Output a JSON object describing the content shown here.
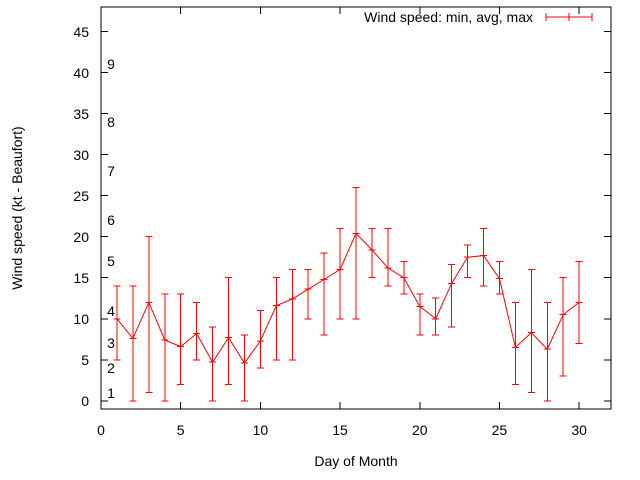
{
  "chart_data": {
    "type": "line",
    "subtype": "yerrorlines",
    "title": "",
    "xlabel": "Day of Month",
    "ylabel": "Wind speed (kt - Beaufort)",
    "legend_label": "Wind speed: min, avg, max",
    "legend_position": "top-right-inside",
    "grid": false,
    "series_color": "#ff0000",
    "axis_color": "#000000",
    "background_color": "#ffffff",
    "xlim": [
      0,
      32
    ],
    "ylim": [
      -1,
      48
    ],
    "x_ticks": [
      0,
      5,
      10,
      15,
      20,
      25,
      30
    ],
    "y_ticks": [
      0,
      5,
      10,
      15,
      20,
      25,
      30,
      35,
      40,
      45
    ],
    "beaufort_scale_labels": [
      {
        "label": "1",
        "kt": 1
      },
      {
        "label": "2",
        "kt": 4
      },
      {
        "label": "3",
        "kt": 7
      },
      {
        "label": "4",
        "kt": 11
      },
      {
        "label": "5",
        "kt": 17
      },
      {
        "label": "6",
        "kt": 22
      },
      {
        "label": "7",
        "kt": 28
      },
      {
        "label": "8",
        "kt": 34
      },
      {
        "label": "9",
        "kt": 41
      }
    ],
    "points": [
      {
        "day": 1,
        "min": 5,
        "avg": 10.0,
        "max": 14
      },
      {
        "day": 2,
        "min": 0,
        "avg": 7.6,
        "max": 14
      },
      {
        "day": 3,
        "min": 1,
        "avg": 12.0,
        "max": 20
      },
      {
        "day": 4,
        "min": 0,
        "avg": 7.4,
        "max": 13
      },
      {
        "day": 5,
        "min": 2,
        "avg": 6.6,
        "max": 13
      },
      {
        "day": 6,
        "min": 5,
        "avg": 8.2,
        "max": 12
      },
      {
        "day": 7,
        "min": 0,
        "avg": 4.7,
        "max": 9
      },
      {
        "day": 8,
        "min": 2,
        "avg": 7.7,
        "max": 15
      },
      {
        "day": 9,
        "min": 0,
        "avg": 4.6,
        "max": 8
      },
      {
        "day": 10,
        "min": 4,
        "avg": 7.3,
        "max": 11
      },
      {
        "day": 11,
        "min": 5,
        "avg": 11.6,
        "max": 15
      },
      {
        "day": 12,
        "min": 5,
        "avg": 12.4,
        "max": 16
      },
      {
        "day": 13,
        "min": 10,
        "avg": 13.6,
        "max": 16
      },
      {
        "day": 14,
        "min": 8,
        "avg": 14.8,
        "max": 18
      },
      {
        "day": 15,
        "min": 10,
        "avg": 16.0,
        "max": 21
      },
      {
        "day": 16,
        "min": 10,
        "avg": 20.4,
        "max": 26
      },
      {
        "day": 17,
        "min": 15,
        "avg": 18.4,
        "max": 21
      },
      {
        "day": 18,
        "min": 14,
        "avg": 16.2,
        "max": 21
      },
      {
        "day": 19,
        "min": 13,
        "avg": 15.0,
        "max": 17
      },
      {
        "day": 20,
        "min": 8,
        "avg": 11.5,
        "max": 13
      },
      {
        "day": 21,
        "min": 8,
        "avg": 10.0,
        "max": 12.5
      },
      {
        "day": 22,
        "min": 9,
        "avg": 14.3,
        "max": 16.6
      },
      {
        "day": 23,
        "min": 15,
        "avg": 17.5,
        "max": 19
      },
      {
        "day": 24,
        "min": 14,
        "avg": 17.7,
        "max": 21
      },
      {
        "day": 25,
        "min": 13,
        "avg": 14.9,
        "max": 17
      },
      {
        "day": 26,
        "min": 2,
        "avg": 6.5,
        "max": 12
      },
      {
        "day": 27,
        "min": 1,
        "avg": 8.3,
        "max": 16
      },
      {
        "day": 28,
        "min": 0,
        "avg": 6.3,
        "max": 12
      },
      {
        "day": 29,
        "min": 3,
        "avg": 10.5,
        "max": 15
      },
      {
        "day": 30,
        "min": 7,
        "avg": 12.0,
        "max": 17
      }
    ]
  }
}
